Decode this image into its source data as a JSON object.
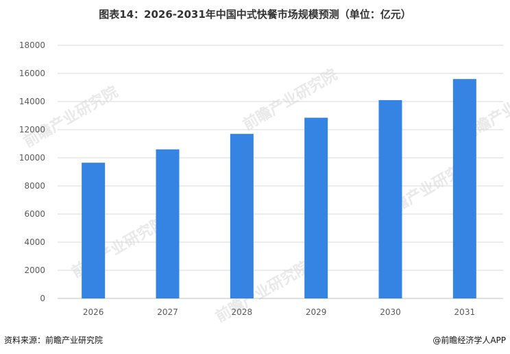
{
  "title": "图表14：2026-2031年中国中式快餐市场规模预测（单位：亿元）",
  "chart_data": {
    "type": "bar",
    "categories": [
      "2026",
      "2027",
      "2028",
      "2029",
      "2030",
      "2031"
    ],
    "values": [
      9650,
      10600,
      11700,
      12850,
      14100,
      15600
    ],
    "yticks": [
      0,
      2000,
      4000,
      6000,
      8000,
      10000,
      12000,
      14000,
      16000,
      18000
    ],
    "ylim": [
      0,
      18000
    ],
    "bar_color": "#3584e4",
    "grid": true,
    "legend": "none"
  },
  "footer": {
    "source": "资料来源：前瞻产业研究院",
    "brand": "@前瞻经济学人APP"
  },
  "watermark": {
    "text": "前瞻产业研究院",
    "color": "#e9e9e9"
  }
}
